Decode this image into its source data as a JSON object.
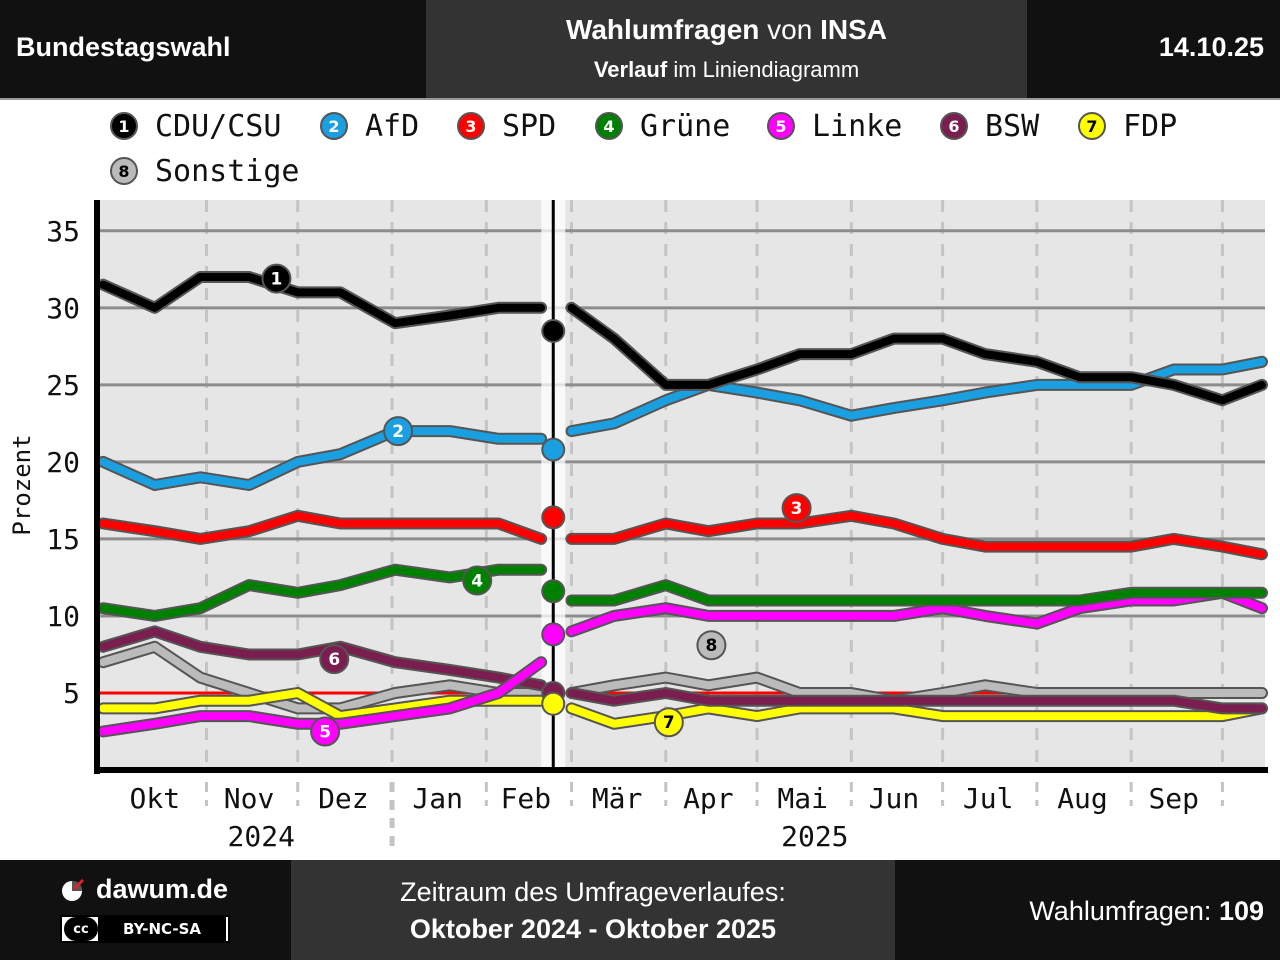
{
  "header": {
    "left": "Bundestagswahl",
    "title_bold": "Wahlumfragen",
    "title_mid": "von",
    "title_inst": "INSA",
    "subtitle_bold": "Verlauf",
    "subtitle_rest": "im Liniendiagramm",
    "date": "14.10.25"
  },
  "footer": {
    "brand": "dawum.de",
    "license_logo": "cc",
    "license": "BY-NC-SA",
    "period_label": "Zeitraum des Umfrageverlaufes:",
    "period": "Oktober 2024 - Oktober 2025",
    "count_label": "Wahlumfragen:",
    "count": "109"
  },
  "chart_data": {
    "type": "line",
    "ylabel": "Prozent",
    "ylim": [
      0,
      37
    ],
    "yticks": [
      5,
      10,
      15,
      20,
      25,
      30,
      35
    ],
    "x_month_labels": [
      "Okt",
      "Nov",
      "Dez",
      "Jan",
      "Feb",
      "Mär",
      "Apr",
      "Mai",
      "Jun",
      "Jul",
      "Aug",
      "Sep"
    ],
    "x_year_labels": [
      "2024",
      "2025"
    ],
    "reference_line": 5,
    "election_marker": "2025-02-23",
    "series": [
      {
        "num": "1",
        "name": "CDU/CSU",
        "color": "#000000",
        "badge_text": "#ffffff",
        "x": [
          "2024-09-28",
          "2024-10-15",
          "2024-10-30",
          "2024-11-15",
          "2024-12-01",
          "2024-12-15",
          "2025-01-02",
          "2025-01-20",
          "2025-02-05",
          "2025-02-19",
          "2025-03-01",
          "2025-03-15",
          "2025-04-01",
          "2025-04-15",
          "2025-05-01",
          "2025-05-15",
          "2025-06-01",
          "2025-06-15",
          "2025-07-01",
          "2025-07-15",
          "2025-08-01",
          "2025-08-15",
          "2025-09-01",
          "2025-09-15",
          "2025-10-01",
          "2025-10-14"
        ],
        "values": [
          31.5,
          30,
          32,
          32,
          31,
          31,
          29,
          29.5,
          30,
          30,
          30,
          28,
          25,
          25,
          26,
          27,
          27,
          28,
          28,
          27,
          26.5,
          25.5,
          25.5,
          25,
          24,
          25
        ]
      },
      {
        "num": "2",
        "name": "AfD",
        "color": "#1a9fe0",
        "badge_text": "#ffffff",
        "x": [
          "2024-09-28",
          "2024-10-15",
          "2024-10-30",
          "2024-11-15",
          "2024-12-01",
          "2024-12-15",
          "2025-01-02",
          "2025-01-20",
          "2025-02-05",
          "2025-02-19",
          "2025-03-01",
          "2025-03-15",
          "2025-04-01",
          "2025-04-15",
          "2025-05-01",
          "2025-05-15",
          "2025-06-01",
          "2025-06-15",
          "2025-07-01",
          "2025-07-15",
          "2025-08-01",
          "2025-08-15",
          "2025-09-01",
          "2025-09-15",
          "2025-10-01",
          "2025-10-14"
        ],
        "values": [
          20,
          18.5,
          19,
          18.5,
          20,
          20.5,
          22,
          22,
          21.5,
          21.5,
          22,
          22.5,
          24,
          25,
          24.5,
          24,
          23,
          23.5,
          24,
          24.5,
          25,
          25,
          25,
          26,
          26,
          26.5
        ]
      },
      {
        "num": "3",
        "name": "SPD",
        "color": "#ff0000",
        "badge_text": "#ffffff",
        "x": [
          "2024-09-28",
          "2024-10-15",
          "2024-10-30",
          "2024-11-15",
          "2024-12-01",
          "2024-12-15",
          "2025-01-02",
          "2025-01-20",
          "2025-02-05",
          "2025-02-19",
          "2025-03-01",
          "2025-03-15",
          "2025-04-01",
          "2025-04-15",
          "2025-05-01",
          "2025-05-15",
          "2025-06-01",
          "2025-06-15",
          "2025-07-01",
          "2025-07-15",
          "2025-08-01",
          "2025-08-15",
          "2025-09-01",
          "2025-09-15",
          "2025-10-01",
          "2025-10-14"
        ],
        "values": [
          16,
          15.5,
          15,
          15.5,
          16.5,
          16,
          16,
          16,
          16,
          15,
          15,
          15,
          16,
          15.5,
          16,
          16,
          16.5,
          16,
          15,
          14.5,
          14.5,
          14.5,
          14.5,
          15,
          14.5,
          14
        ]
      },
      {
        "num": "4",
        "name": "Grüne",
        "color": "#008000",
        "badge_text": "#ffffff",
        "x": [
          "2024-09-28",
          "2024-10-15",
          "2024-10-30",
          "2024-11-15",
          "2024-12-01",
          "2024-12-15",
          "2025-01-02",
          "2025-01-20",
          "2025-02-05",
          "2025-02-19",
          "2025-03-01",
          "2025-03-15",
          "2025-04-01",
          "2025-04-15",
          "2025-05-01",
          "2025-05-15",
          "2025-06-01",
          "2025-06-15",
          "2025-07-01",
          "2025-07-15",
          "2025-08-01",
          "2025-08-15",
          "2025-09-01",
          "2025-09-15",
          "2025-10-01",
          "2025-10-14"
        ],
        "values": [
          10.5,
          10,
          10.5,
          12,
          11.5,
          12,
          13,
          12.5,
          13,
          13,
          11,
          11,
          12,
          11,
          11,
          11,
          11,
          11,
          11,
          11,
          11,
          11,
          11.5,
          11.5,
          11.5,
          11.5
        ]
      },
      {
        "num": "5",
        "name": "Linke",
        "color": "#ff00ff",
        "badge_text": "#ffffff",
        "x": [
          "2024-09-28",
          "2024-10-15",
          "2024-10-30",
          "2024-11-15",
          "2024-12-01",
          "2024-12-15",
          "2025-01-02",
          "2025-01-20",
          "2025-02-05",
          "2025-02-19",
          "2025-03-01",
          "2025-03-15",
          "2025-04-01",
          "2025-04-15",
          "2025-05-01",
          "2025-05-15",
          "2025-06-01",
          "2025-06-15",
          "2025-07-01",
          "2025-07-15",
          "2025-08-01",
          "2025-08-15",
          "2025-09-01",
          "2025-09-15",
          "2025-10-01",
          "2025-10-14"
        ],
        "values": [
          2.5,
          3,
          3.5,
          3.5,
          3,
          3,
          3.5,
          4,
          5,
          7,
          9,
          10,
          10.5,
          10,
          10,
          10,
          10,
          10,
          10.5,
          10,
          9.5,
          10.5,
          11,
          11,
          11.5,
          10.5
        ]
      },
      {
        "num": "6",
        "name": "BSW",
        "color": "#7a1e4f",
        "badge_text": "#ffffff",
        "x": [
          "2024-09-28",
          "2024-10-15",
          "2024-10-30",
          "2024-11-15",
          "2024-12-01",
          "2024-12-15",
          "2025-01-02",
          "2025-01-20",
          "2025-02-05",
          "2025-02-19",
          "2025-03-01",
          "2025-03-15",
          "2025-04-01",
          "2025-04-15",
          "2025-05-01",
          "2025-05-15",
          "2025-06-01",
          "2025-06-15",
          "2025-07-01",
          "2025-07-15",
          "2025-08-01",
          "2025-08-15",
          "2025-09-01",
          "2025-09-15",
          "2025-10-01",
          "2025-10-14"
        ],
        "values": [
          8,
          9,
          8,
          7.5,
          7.5,
          8,
          7,
          6.5,
          6,
          5.5,
          5,
          4.5,
          5,
          4.5,
          4.5,
          4.5,
          4.5,
          4.5,
          4.5,
          4.5,
          4.5,
          4.5,
          4.5,
          4.5,
          4,
          4
        ]
      },
      {
        "num": "7",
        "name": "FDP",
        "color": "#ffff00",
        "badge_text": "#000000",
        "x": [
          "2024-09-28",
          "2024-10-15",
          "2024-10-30",
          "2024-11-15",
          "2024-12-01",
          "2024-12-15",
          "2025-01-02",
          "2025-01-20",
          "2025-02-05",
          "2025-02-19",
          "2025-03-01",
          "2025-03-15",
          "2025-04-01",
          "2025-04-15",
          "2025-05-01",
          "2025-05-15",
          "2025-06-01",
          "2025-06-15",
          "2025-07-01",
          "2025-07-15",
          "2025-08-01",
          "2025-08-15",
          "2025-09-01",
          "2025-09-15",
          "2025-10-01",
          "2025-10-14"
        ],
        "values": [
          4,
          4,
          4.5,
          4.5,
          5,
          3.5,
          4,
          4.5,
          4.5,
          4.5,
          4,
          3,
          3.5,
          4,
          3.5,
          4,
          4,
          4,
          3.5,
          3.5,
          3.5,
          3.5,
          3.5,
          3.5,
          3.5,
          4
        ]
      },
      {
        "num": "8",
        "name": "Sonstige",
        "color": "#bbbbbb",
        "badge_text": "#000000",
        "x": [
          "2024-09-28",
          "2024-10-15",
          "2024-10-30",
          "2024-11-15",
          "2024-12-01",
          "2024-12-15",
          "2025-01-02",
          "2025-01-20",
          "2025-02-05",
          "2025-02-19",
          "2025-03-01",
          "2025-03-15",
          "2025-04-01",
          "2025-04-15",
          "2025-05-01",
          "2025-05-15",
          "2025-06-01",
          "2025-06-15",
          "2025-07-01",
          "2025-07-15",
          "2025-08-01",
          "2025-08-15",
          "2025-09-01",
          "2025-09-15",
          "2025-10-01",
          "2025-10-14"
        ],
        "values": [
          7,
          8,
          6,
          5,
          4,
          4,
          5,
          5.5,
          5,
          5,
          5,
          5.5,
          6,
          5.5,
          6,
          5,
          5,
          4.5,
          5,
          5.5,
          5,
          5,
          5,
          5,
          5,
          5
        ]
      }
    ]
  }
}
